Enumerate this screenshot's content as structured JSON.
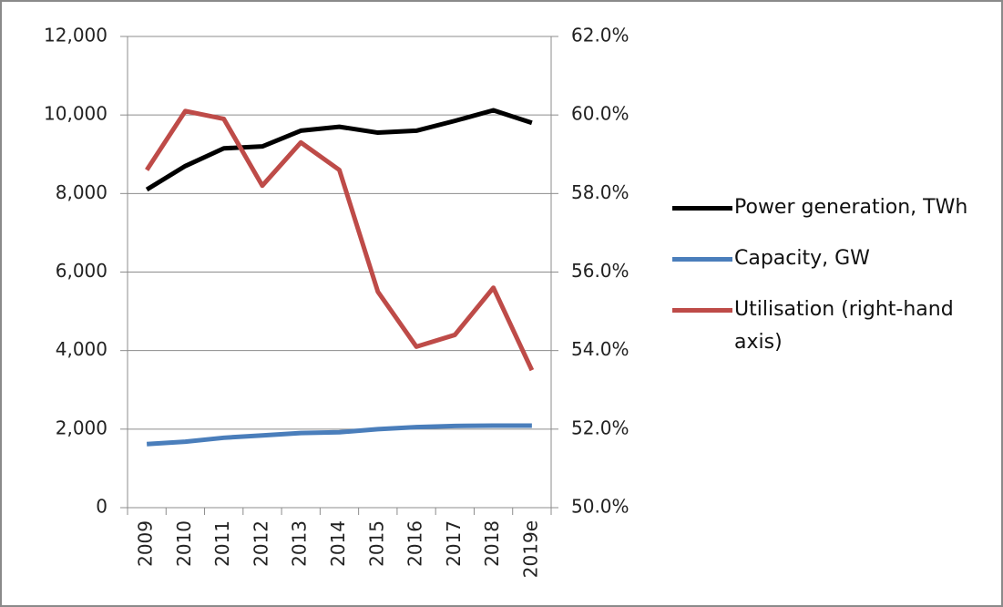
{
  "chart_data": {
    "type": "line",
    "categories": [
      "2009",
      "2010",
      "2011",
      "2012",
      "2013",
      "2014",
      "2015",
      "2016",
      "2017",
      "2018",
      "2019e"
    ],
    "series": [
      {
        "name": "Power generation, TWh",
        "color": "#000000",
        "values": [
          8100,
          8700,
          9150,
          9200,
          9600,
          9700,
          9550,
          9600,
          9850,
          10120,
          9800
        ]
      },
      {
        "name": "Capacity, GW",
        "color": "#4a7ebb",
        "values": [
          1620,
          1680,
          1780,
          1840,
          1900,
          1920,
          2000,
          2050,
          2080,
          2090,
          2090
        ]
      },
      {
        "name": "Utilisation (right-hand axis)",
        "color": "#be4b48",
        "axis": "y2",
        "values": [
          58.6,
          60.1,
          59.9,
          58.2,
          59.3,
          58.6,
          55.5,
          54.1,
          54.4,
          55.6,
          53.5
        ]
      }
    ],
    "ylim": [
      0,
      12000
    ],
    "yticks": [
      0,
      {
        "value": 2000,
        "label": "2,000"
      },
      {
        "value": 4000,
        "label": "4,000"
      },
      {
        "value": 6000,
        "label": "6,000"
      },
      {
        "value": 8000,
        "label": "8,000"
      },
      {
        "value": 10000,
        "label": "10,000"
      },
      {
        "value": 12000,
        "label": "12,000"
      }
    ],
    "y2lim": [
      50,
      62
    ],
    "y2ticks": [
      {
        "value": 50,
        "label": "50.0%"
      },
      {
        "value": 52,
        "label": "52.0%"
      },
      {
        "value": 54,
        "label": "54.0%"
      },
      {
        "value": 56,
        "label": "56.0%"
      },
      {
        "value": 58,
        "label": "58.0%"
      },
      {
        "value": 60,
        "label": "60.0%"
      },
      {
        "value": 62,
        "label": "62.0%"
      }
    ],
    "grid": true,
    "legend": "right"
  }
}
